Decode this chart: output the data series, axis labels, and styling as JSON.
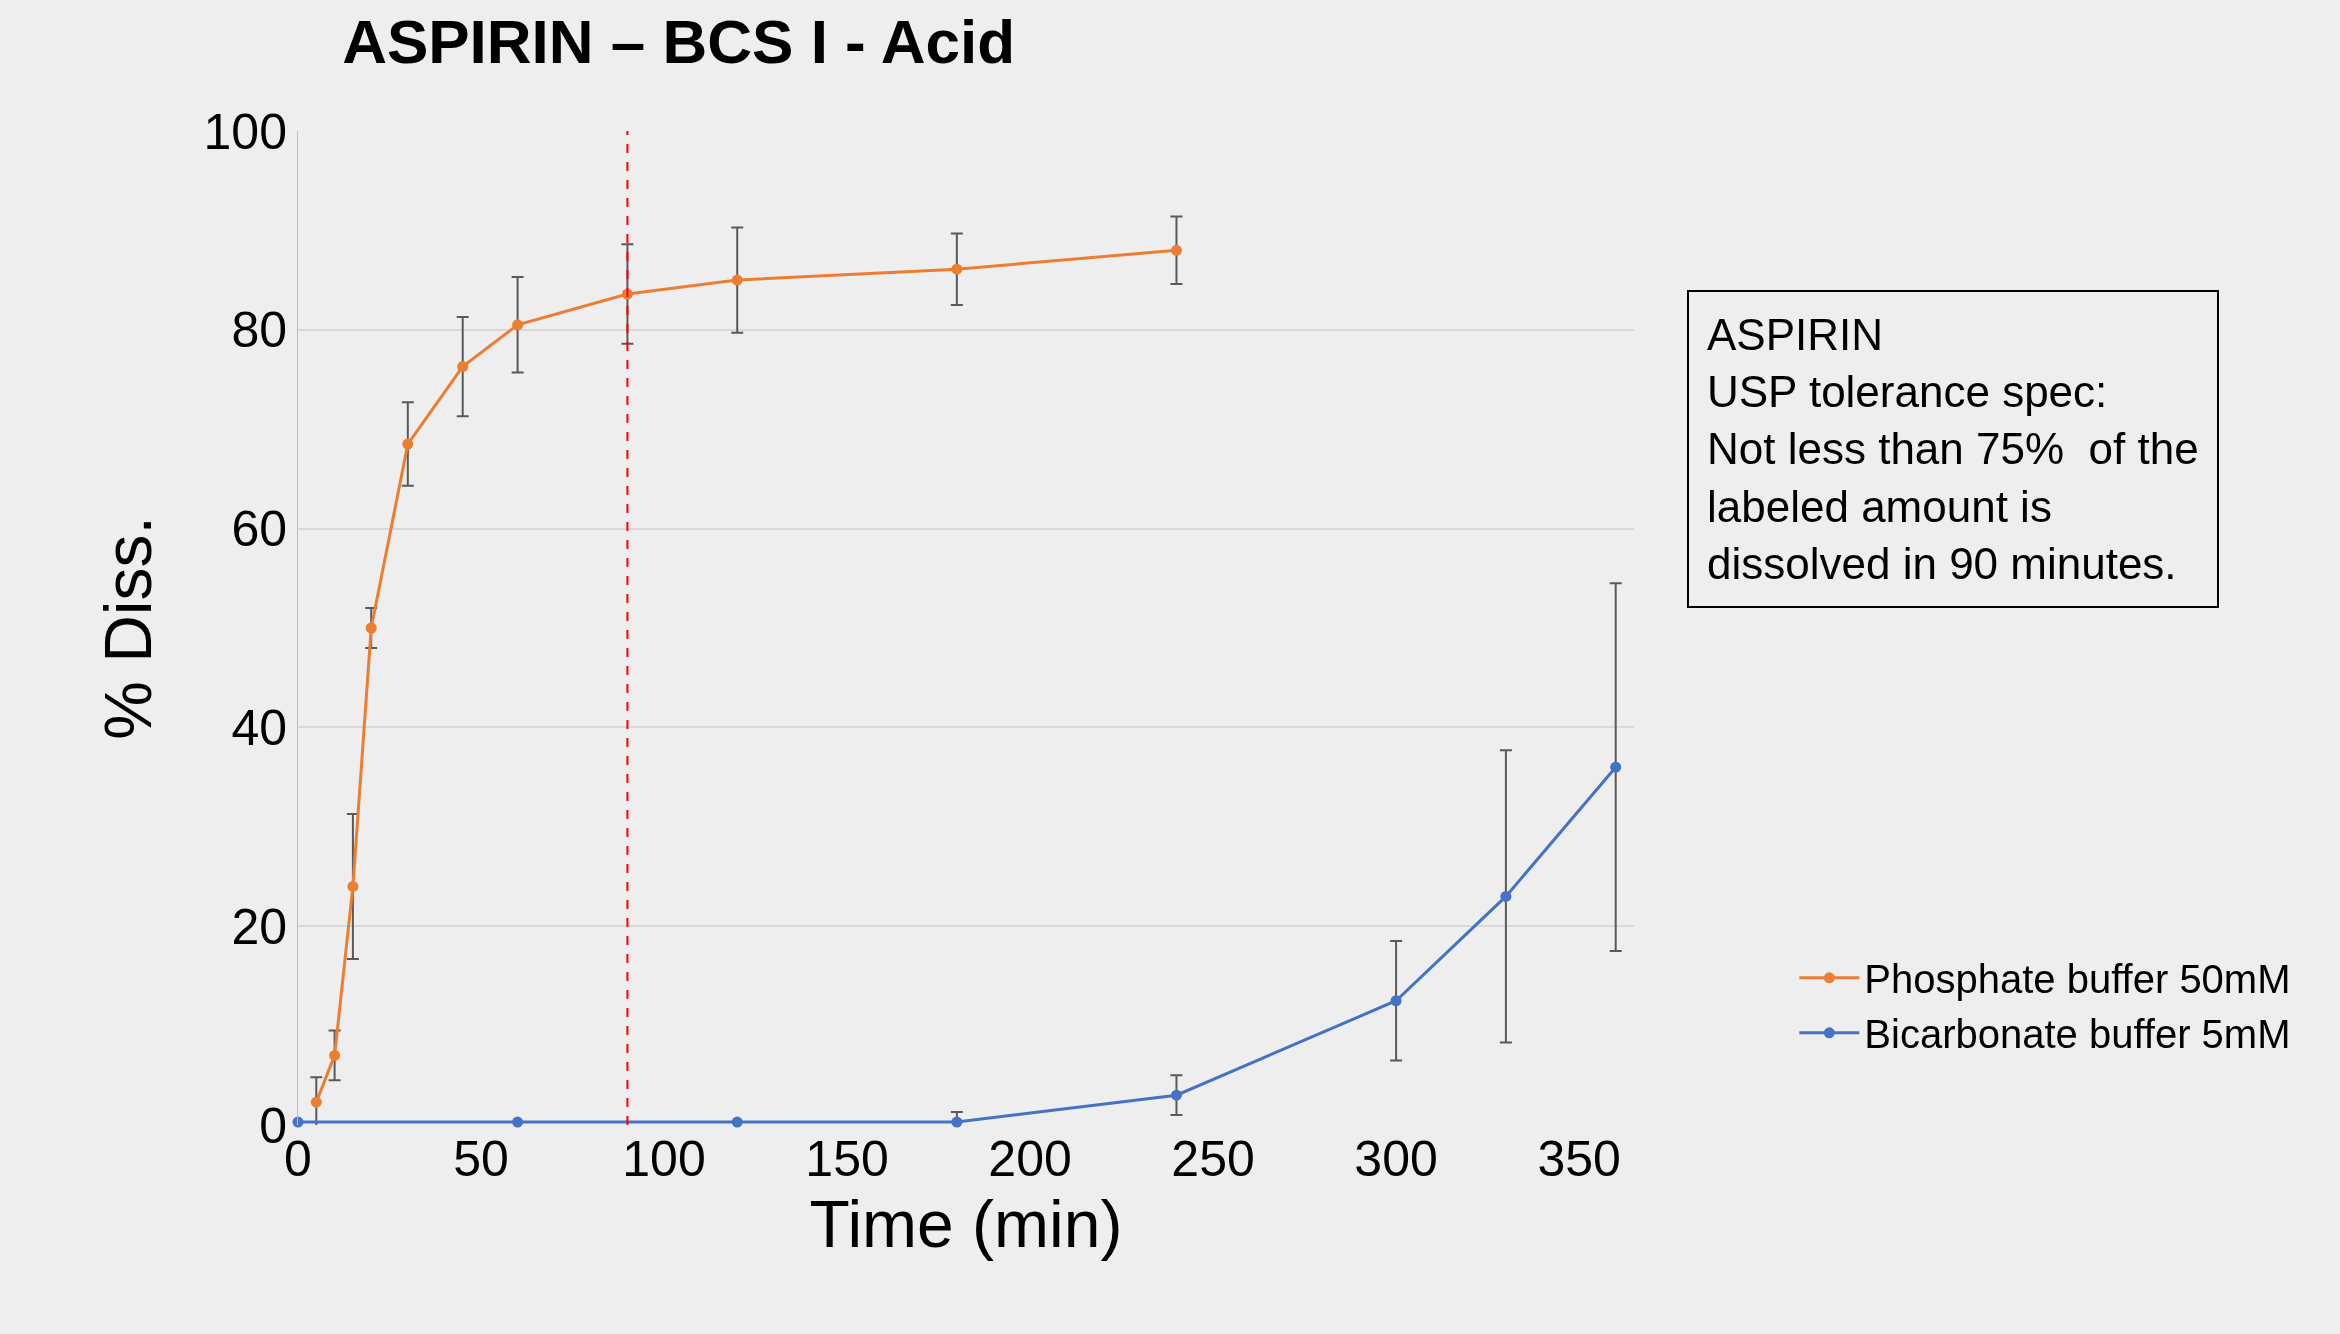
{
  "chart_data": {
    "type": "line",
    "title": "ASPIRIN – BCS I - Acid",
    "xlabel": "Time (min)",
    "ylabel": "% Diss.",
    "xlim": [
      0,
      365
    ],
    "xticks": [
      0,
      50,
      100,
      150,
      200,
      250,
      300,
      350
    ],
    "ylim": [
      0,
      100
    ],
    "yticks": [
      0,
      20,
      40,
      60,
      80,
      100
    ],
    "grid": "y",
    "legend": "right",
    "marker": "circle",
    "line_style": "solid",
    "series": [
      {
        "name": "Phosphate buffer 50mM",
        "color": "#ed7d31",
        "x": [
          5,
          10,
          15,
          20,
          30,
          45,
          60,
          90,
          120,
          180,
          240
        ],
        "values": [
          2.3,
          7,
          24,
          50,
          68.5,
          76.3,
          80.5,
          83.6,
          85,
          86.1,
          88
        ],
        "errors": [
          2.5,
          2.5,
          7.3,
          2,
          4.2,
          5,
          4.8,
          5,
          5.3,
          3.6,
          3.4
        ]
      },
      {
        "name": "Bicarbonate buffer 5mM",
        "color": "#4472c4",
        "x": [
          0,
          60,
          120,
          180,
          240,
          300,
          330,
          360
        ],
        "values": [
          0.3,
          0.3,
          0.3,
          0.3,
          3,
          12.5,
          23,
          36
        ],
        "errors": [
          null,
          null,
          null,
          1,
          2,
          6,
          14.7,
          18.5
        ]
      }
    ],
    "ref_lines": [
      {
        "axis": "x",
        "value": 90,
        "color": "#ff0000",
        "line_style": "dashed"
      }
    ],
    "annotations": [
      "ASPIRIN\nUSP tolerance spec:\nNot less than 75%  of the\nlabeled amount is\ndissolved in 90 minutes."
    ]
  }
}
